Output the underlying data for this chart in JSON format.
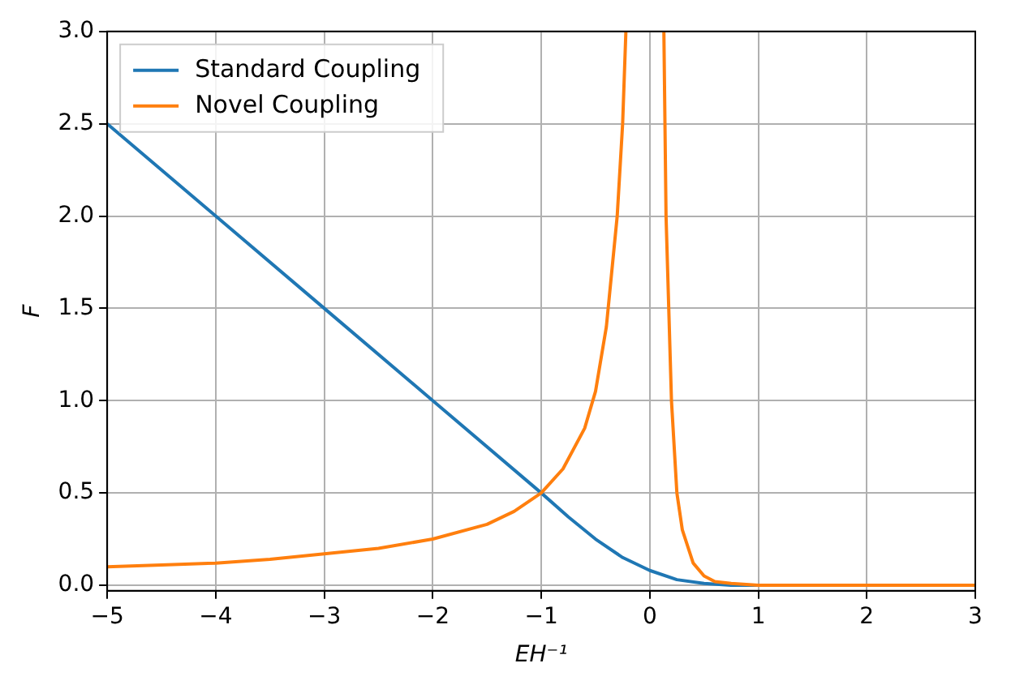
{
  "chart_data": {
    "type": "line",
    "xlabel": "EH⁻¹",
    "ylabel": "F",
    "xlim": [
      -5,
      3
    ],
    "xticks": [
      -5,
      -4,
      -3,
      -2,
      -1,
      0,
      1,
      2,
      3
    ],
    "ylim": [
      -0.03,
      3
    ],
    "yticks": [
      {
        "value": 0,
        "label": "0.0"
      },
      0.5,
      {
        "value": 1,
        "label": "1.0"
      },
      1.5,
      {
        "value": 2,
        "label": "2.0"
      },
      2.5,
      {
        "value": 3,
        "label": "3.0"
      }
    ],
    "grid": true,
    "legend": "top left",
    "line_style": "solid",
    "marker": "none",
    "series": [
      {
        "name": "Standard Coupling",
        "color": "#1f77b4",
        "x": [
          -5,
          -4,
          -3,
          -2,
          -1,
          -0.75,
          -0.5,
          -0.25,
          0,
          0.25,
          0.5,
          0.75,
          1,
          1.5,
          3
        ],
        "values": [
          2.5,
          2,
          1.5,
          1,
          0.5,
          0.37,
          0.25,
          0.15,
          0.08,
          0.03,
          0.01,
          0,
          0,
          0,
          0
        ]
      },
      {
        "name": "Novel Coupling",
        "color": "#ff7f0e",
        "x": [
          -5,
          -4.5,
          -4,
          -3.5,
          -3,
          -2.5,
          -2,
          -1.5,
          -1.25,
          -1,
          -0.8,
          -0.6,
          -0.5,
          -0.4,
          -0.3,
          -0.25,
          -0.22,
          0,
          0.13,
          0.15,
          0.2,
          0.25,
          0.3,
          0.4,
          0.5,
          0.6,
          0.75,
          1,
          2,
          3
        ],
        "values": [
          0.1,
          0.11,
          0.12,
          0.14,
          0.17,
          0.2,
          0.25,
          0.33,
          0.4,
          0.5,
          0.63,
          0.85,
          1.05,
          1.4,
          2.0,
          2.5,
          3.0,
          null,
          3.0,
          2.0,
          1.0,
          0.5,
          0.3,
          0.12,
          0.05,
          0.02,
          0.01,
          0,
          0,
          0
        ]
      }
    ]
  }
}
